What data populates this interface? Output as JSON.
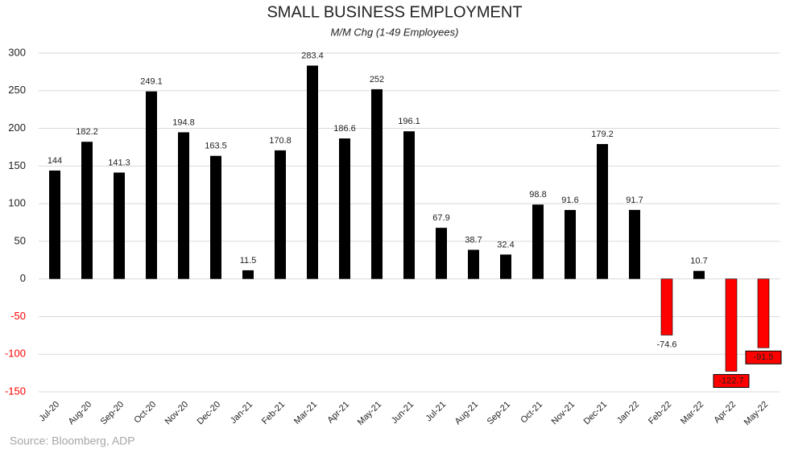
{
  "chart_data": {
    "type": "bar",
    "title": "SMALL BUSINESS EMPLOYMENT",
    "subtitle": "M/M Chg (1-49 Employees)",
    "categories": [
      "Jul-20",
      "Aug-20",
      "Sep-20",
      "Oct-20",
      "Nov-20",
      "Dec-20",
      "Jan-21",
      "Feb-21",
      "Mar-21",
      "Apr-21",
      "May-21",
      "Jun-21",
      "Jul-21",
      "Aug-21",
      "Sep-21",
      "Oct-21",
      "Nov-21",
      "Dec-21",
      "Jan-22",
      "Feb-22",
      "Mar-22",
      "Apr-22",
      "May-22"
    ],
    "values": [
      144,
      182.2,
      141.3,
      249.1,
      194.8,
      163.5,
      11.5,
      170.8,
      283.4,
      186.6,
      252,
      196.1,
      67.9,
      38.7,
      32.4,
      98.8,
      91.6,
      179.2,
      91.7,
      -74.6,
      10.7,
      -122.7,
      -91.5
    ],
    "color": "#000000",
    "negative_color": "#ff0000",
    "boxed_labels": [
      21,
      22
    ],
    "ylim": [
      -150,
      300
    ],
    "yticks": [
      -150,
      -100,
      -50,
      0,
      50,
      100,
      150,
      200,
      250,
      300
    ],
    "grid": true,
    "source": "Source: Bloomberg, ADP"
  }
}
